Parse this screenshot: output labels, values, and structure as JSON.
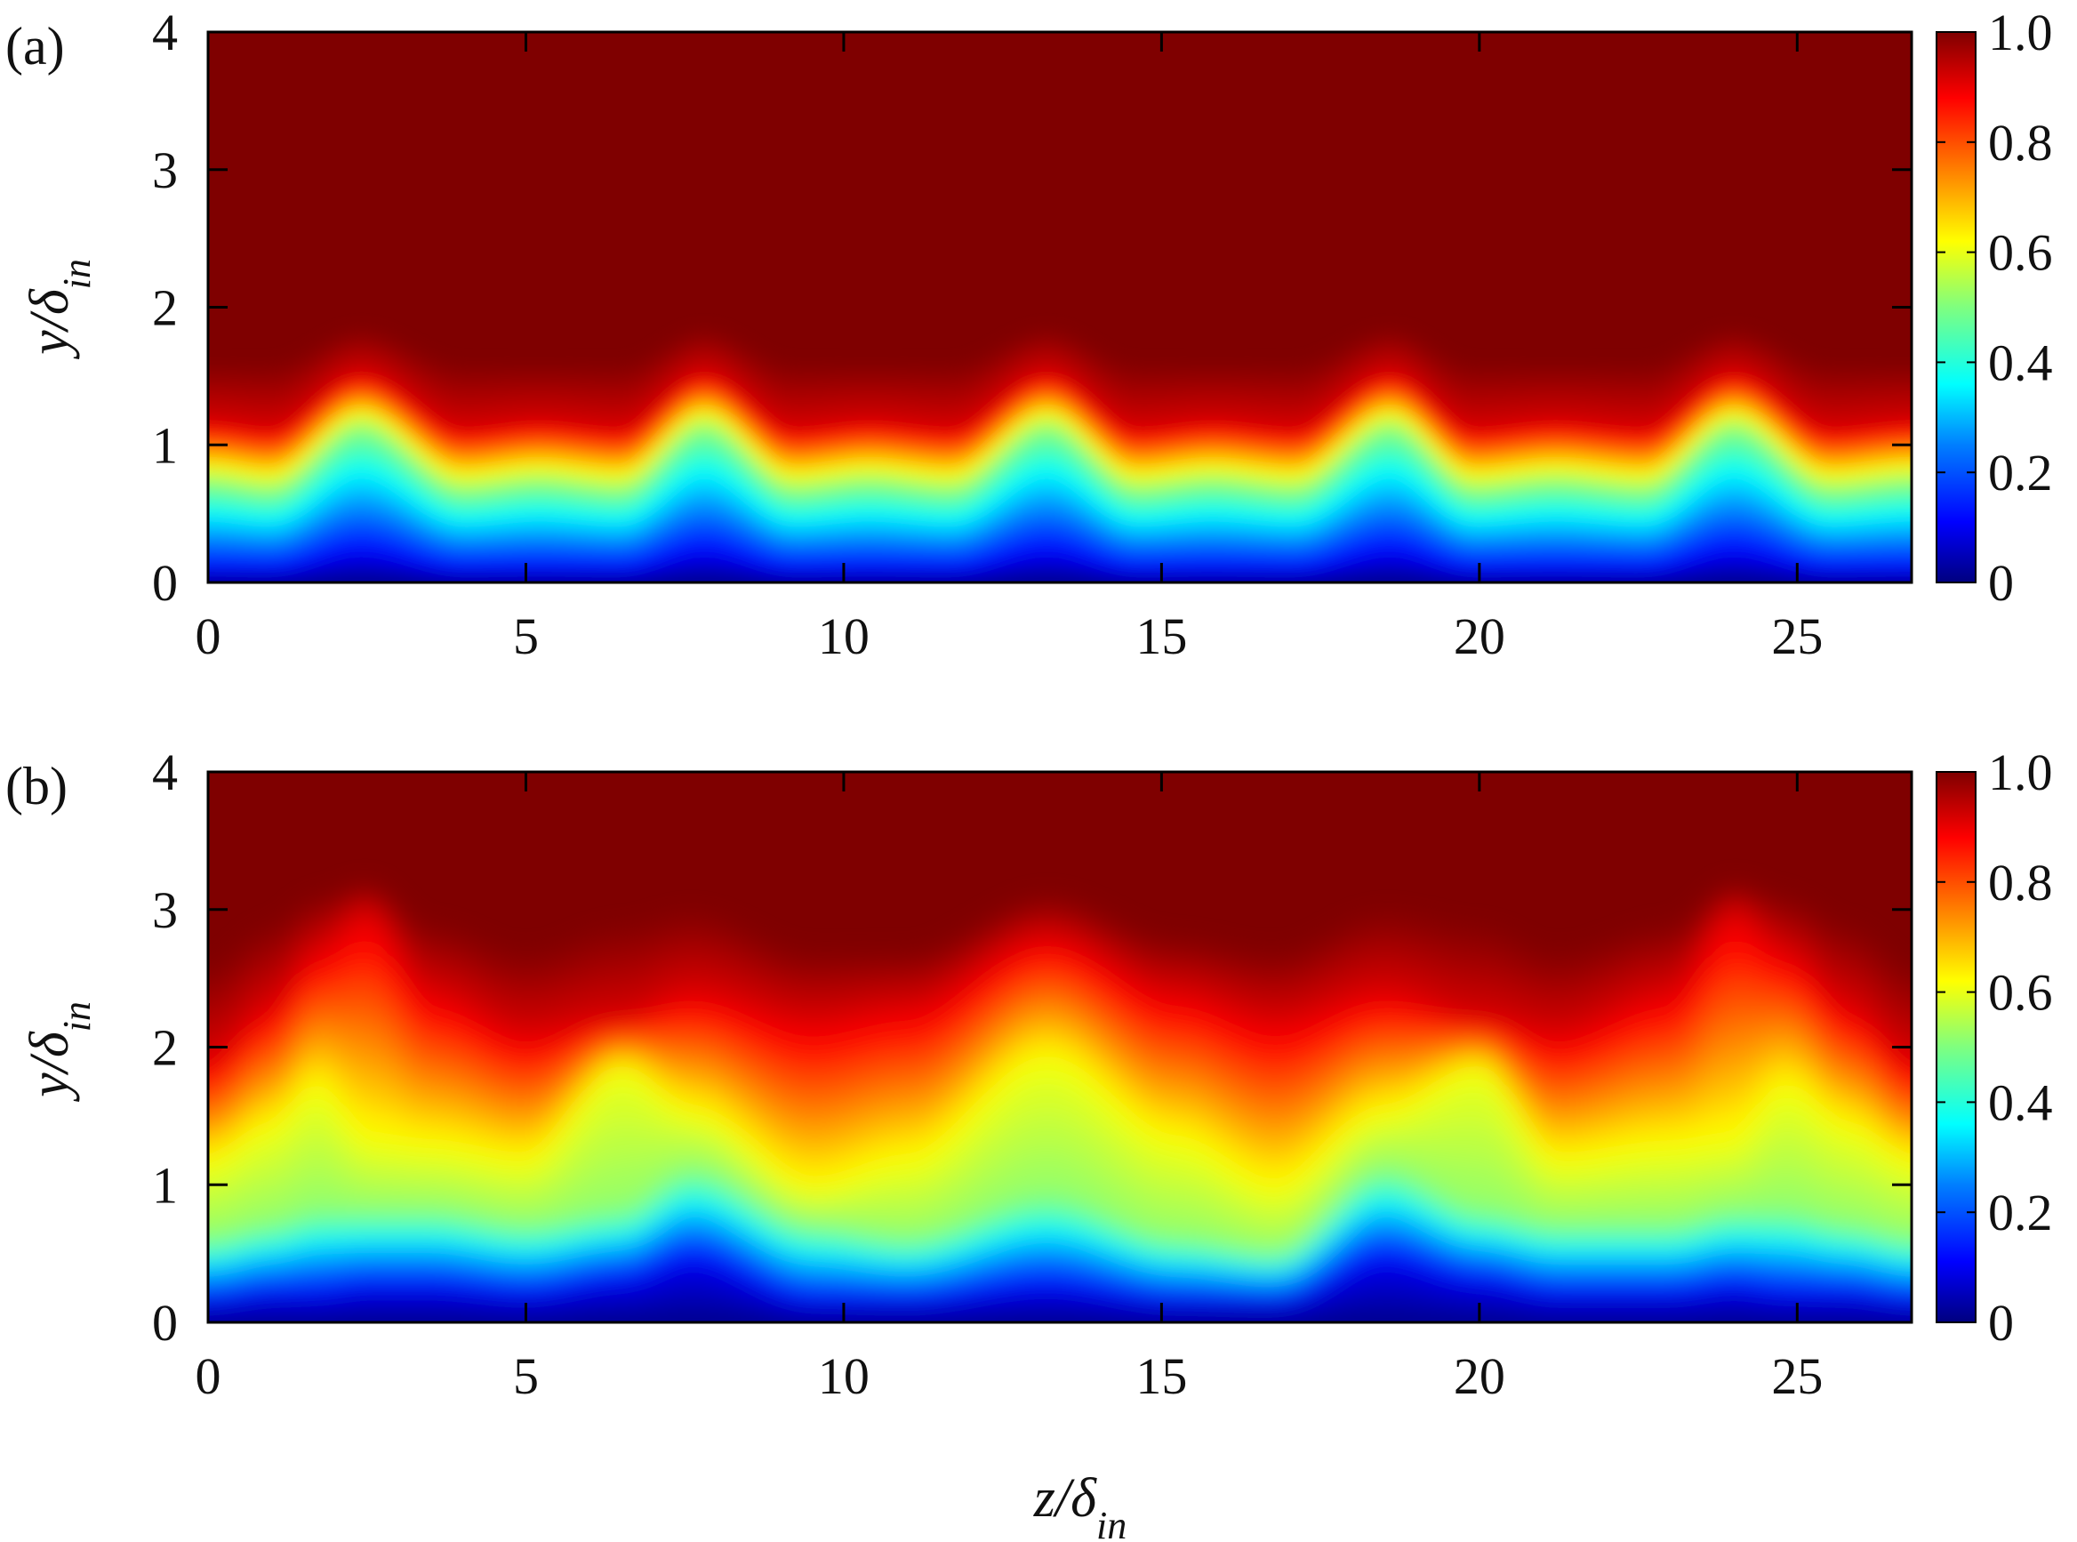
{
  "chart_data": [
    {
      "type": "heatmap",
      "panel_label": "(a)",
      "xlabel": "",
      "ylabel": "y/δin",
      "ylabel_parts": {
        "main": "y/δ",
        "sub": "in"
      },
      "xlim": [
        0,
        26.8
      ],
      "ylim": [
        0,
        4
      ],
      "x_ticks": [
        "0",
        "5",
        "10",
        "15",
        "20",
        "25"
      ],
      "y_ticks": [
        "0",
        "1",
        "2",
        "3",
        "4"
      ],
      "colorbar": {
        "ticks": [
          "0",
          "0.2",
          "0.4",
          "0.6",
          "0.8",
          "1.0"
        ],
        "range": [
          0,
          1
        ],
        "colormap": "jet"
      },
      "profile": {
        "description_key": "contour level height y/δin vs z/δin",
        "levels": [
          0.1,
          0.5,
          0.9
        ],
        "z": [
          0,
          1,
          2.4,
          4,
          5.2,
          6.5,
          7.8,
          9.2,
          10.4,
          11.7,
          13.2,
          14.6,
          15.8,
          17.1,
          18.6,
          19.9,
          21.2,
          22.6,
          24.0,
          25.5,
          26.8
        ],
        "y_at_0_5": [
          0.72,
          0.66,
          1.12,
          0.66,
          0.72,
          0.66,
          1.12,
          0.66,
          0.72,
          0.66,
          1.12,
          0.66,
          0.72,
          0.66,
          1.12,
          0.66,
          0.72,
          0.66,
          1.12,
          0.66,
          0.72
        ],
        "y_at_0_9": [
          1.15,
          1.1,
          1.5,
          1.1,
          1.15,
          1.1,
          1.5,
          1.1,
          1.15,
          1.1,
          1.5,
          1.1,
          1.15,
          1.1,
          1.5,
          1.1,
          1.15,
          1.1,
          1.5,
          1.1,
          1.15
        ],
        "y_at_0_1": [
          0.08,
          0.08,
          0.2,
          0.08,
          0.08,
          0.08,
          0.2,
          0.08,
          0.08,
          0.08,
          0.2,
          0.08,
          0.08,
          0.08,
          0.2,
          0.08,
          0.08,
          0.08,
          0.2,
          0.08,
          0.08
        ],
        "y_at_0_99": [
          1.6,
          1.6,
          1.85,
          1.6,
          1.6,
          1.6,
          1.85,
          1.6,
          1.6,
          1.6,
          1.85,
          1.6,
          1.6,
          1.6,
          1.85,
          1.6,
          1.6,
          1.6,
          1.85,
          1.6,
          1.6
        ]
      }
    },
    {
      "type": "heatmap",
      "panel_label": "(b)",
      "xlabel": "z/δin",
      "xlabel_parts": {
        "main": "z/δ",
        "sub": "in"
      },
      "ylabel": "y/δin",
      "ylabel_parts": {
        "main": "y/δ",
        "sub": "in"
      },
      "xlim": [
        0,
        26.8
      ],
      "ylim": [
        0,
        4
      ],
      "x_ticks": [
        "0",
        "5",
        "10",
        "15",
        "20",
        "25"
      ],
      "y_ticks": [
        "0",
        "1",
        "2",
        "3",
        "4"
      ],
      "colorbar": {
        "ticks": [
          "0",
          "0.2",
          "0.4",
          "0.6",
          "0.8",
          "1.0"
        ],
        "range": [
          0,
          1
        ],
        "colormap": "jet"
      },
      "profile": {
        "levels": [
          0.1,
          0.5,
          0.9
        ],
        "z": [
          0,
          1,
          1.7,
          2.5,
          3.5,
          5,
          6.5,
          7.6,
          9.5,
          11,
          13.2,
          15.2,
          16.8,
          18.5,
          20,
          21.2,
          23,
          24,
          24.8,
          25.8,
          26.8
        ],
        "y_at_0_1": [
          0.15,
          0.2,
          0.2,
          0.25,
          0.25,
          0.2,
          0.3,
          0.45,
          0.15,
          0.15,
          0.25,
          0.15,
          0.15,
          0.45,
          0.3,
          0.2,
          0.2,
          0.25,
          0.2,
          0.2,
          0.15
        ],
        "y_at_0_5": [
          0.6,
          0.7,
          0.8,
          0.8,
          0.8,
          0.7,
          0.8,
          1.1,
          0.7,
          0.6,
          0.9,
          0.6,
          0.5,
          1.1,
          0.8,
          0.7,
          0.7,
          0.8,
          0.8,
          0.7,
          0.6
        ],
        "y_at_0_6": [
          1.15,
          1.4,
          1.7,
          1.3,
          1.25,
          1.15,
          1.85,
          1.5,
          0.95,
          1.15,
          1.9,
          1.3,
          0.95,
          1.5,
          1.85,
          1.15,
          1.25,
          1.3,
          1.7,
          1.4,
          1.15
        ],
        "y_at_0_9": [
          1.9,
          2.3,
          2.7,
          3.0,
          2.4,
          2.1,
          2.2,
          2.4,
          2.2,
          2.3,
          2.8,
          2.4,
          2.2,
          2.4,
          2.2,
          2.1,
          2.4,
          3.0,
          2.7,
          2.3,
          1.9
        ],
        "y_at_0_99": [
          2.6,
          2.9,
          3.1,
          3.2,
          2.9,
          2.7,
          2.9,
          3.0,
          2.7,
          2.7,
          3.1,
          2.8,
          2.7,
          3.0,
          2.9,
          2.7,
          2.9,
          3.2,
          3.1,
          2.9,
          2.6
        ]
      }
    }
  ],
  "colors": {
    "jet_stops": [
      "#00007f",
      "#0000ff",
      "#007fff",
      "#00ffff",
      "#7fff7f",
      "#ffff00",
      "#ff7f00",
      "#ff0000",
      "#7f0000"
    ]
  }
}
